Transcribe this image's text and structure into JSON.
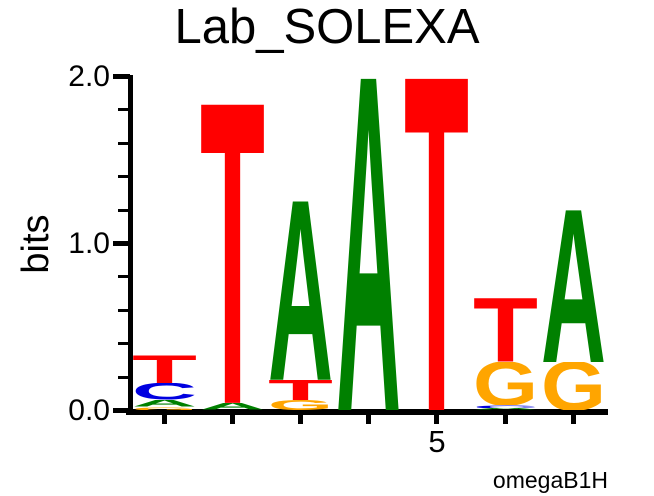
{
  "title": "Lab_SOLEXA",
  "chart_data": {
    "type": "sequence_logo",
    "title": "Lab_SOLEXA",
    "ylabel": "bits",
    "ylim": [
      0,
      2
    ],
    "ytick_labels": [
      {
        "value": 0,
        "label": "0.0"
      },
      {
        "value": 1,
        "label": "1.0"
      },
      {
        "value": 2,
        "label": "2.0"
      }
    ],
    "ytick_minor_step": 0.2,
    "num_positions": 7,
    "xtick_labels": [
      {
        "position": 5,
        "label": "5"
      }
    ],
    "fineprint": "omegaB1H",
    "letter_colors": {
      "A": "#008000",
      "C": "#0000E0",
      "G": "#FFA500",
      "T": "#FF0000"
    },
    "positions": [
      {
        "position": 1,
        "stack_bottom_to_top": [
          {
            "letter": "G",
            "bits": 0.02
          },
          {
            "letter": "A",
            "bits": 0.04
          },
          {
            "letter": "C",
            "bits": 0.1
          },
          {
            "letter": "T",
            "bits": 0.17
          }
        ]
      },
      {
        "position": 2,
        "stack_bottom_to_top": [
          {
            "letter": "A",
            "bits": 0.04
          },
          {
            "letter": "T",
            "bits": 1.79
          }
        ]
      },
      {
        "position": 3,
        "stack_bottom_to_top": [
          {
            "letter": "G",
            "bits": 0.06
          },
          {
            "letter": "T",
            "bits": 0.12
          },
          {
            "letter": "A",
            "bits": 1.07
          }
        ]
      },
      {
        "position": 4,
        "stack_bottom_to_top": [
          {
            "letter": "A",
            "bits": 1.99
          }
        ]
      },
      {
        "position": 5,
        "stack_bottom_to_top": [
          {
            "letter": "T",
            "bits": 1.99
          }
        ]
      },
      {
        "position": 6,
        "stack_bottom_to_top": [
          {
            "letter": "A",
            "bits": 0.01
          },
          {
            "letter": "C",
            "bits": 0.02
          },
          {
            "letter": "G",
            "bits": 0.26
          },
          {
            "letter": "T",
            "bits": 0.38
          }
        ]
      },
      {
        "position": 7,
        "stack_bottom_to_top": [
          {
            "letter": "G",
            "bits": 0.29
          },
          {
            "letter": "A",
            "bits": 0.91
          }
        ]
      }
    ]
  },
  "colors": {
    "axis": "#000000",
    "text": "#000000",
    "background": "#FFFFFF"
  }
}
